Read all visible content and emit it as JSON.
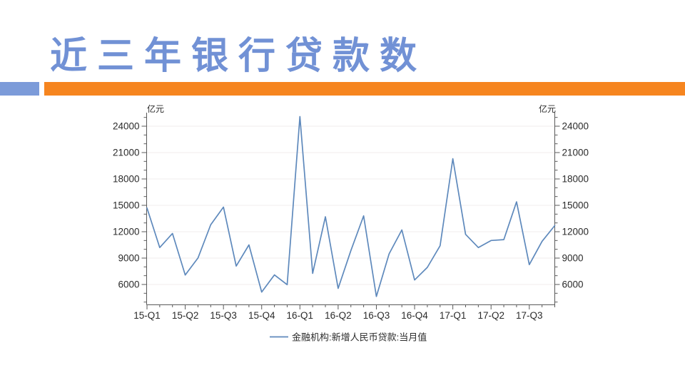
{
  "slide": {
    "title": "近三年银行贷款数",
    "colors": {
      "title_blue": "#7191D5",
      "accent_block_blue": "#7C9BD9",
      "accent_bar_orange": "#F6851F"
    }
  },
  "chart_data": {
    "type": "line",
    "title": "",
    "unit_label": "亿元",
    "legend": "金融机构:新增人民币贷款:当月值",
    "line_color": "#5E89BC",
    "grid_color": "#F2EDED",
    "axis_color": "#5a5a5a",
    "x_frequency": "monthly",
    "x_range_label": "15-Q1 to 17-Q3 (Jan 2015 - Sep 2017)",
    "x_tick_labels": [
      "15-Q1",
      "15-Q2",
      "15-Q3",
      "15-Q4",
      "16-Q1",
      "16-Q2",
      "16-Q3",
      "16-Q4",
      "17-Q1",
      "17-Q2",
      "17-Q3"
    ],
    "y_ticks": [
      6000,
      9000,
      12000,
      15000,
      18000,
      21000,
      24000
    ],
    "y_minor_tick_step": 1000,
    "ylim": [
      2700,
      25700
    ],
    "grid": "horizontal-faint",
    "legend_position": "bottom-center",
    "series": [
      {
        "name": "金融机构:新增人民币贷款:当月值",
        "values": [
          14700,
          10200,
          11800,
          7079,
          9008,
          12791,
          14800,
          8096,
          10500,
          5136,
          7089,
          5978,
          25100,
          7266,
          13700,
          5556,
          9855,
          13800,
          4636,
          9487,
          12200,
          6513,
          7946,
          10400,
          20300,
          11700,
          10200,
          11000,
          11100,
          15400,
          8255,
          10900,
          12700
        ]
      }
    ]
  }
}
